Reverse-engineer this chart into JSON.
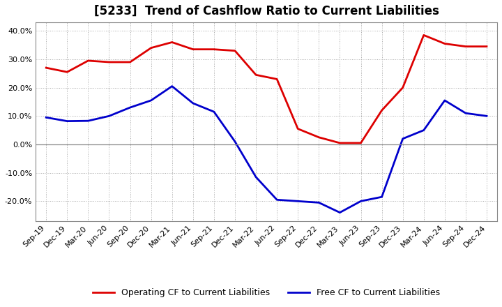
{
  "title": "[5233]  Trend of Cashflow Ratio to Current Liabilities",
  "x_labels": [
    "Sep-19",
    "Dec-19",
    "Mar-20",
    "Jun-20",
    "Sep-20",
    "Dec-20",
    "Mar-21",
    "Jun-21",
    "Sep-21",
    "Dec-21",
    "Mar-22",
    "Jun-22",
    "Sep-22",
    "Dec-22",
    "Mar-23",
    "Jun-23",
    "Sep-23",
    "Dec-23",
    "Mar-24",
    "Jun-24",
    "Sep-24",
    "Dec-24"
  ],
  "operating_cf": [
    0.27,
    0.255,
    0.295,
    0.29,
    0.29,
    0.34,
    0.36,
    0.335,
    0.335,
    0.33,
    0.245,
    0.23,
    0.055,
    0.025,
    0.005,
    0.005,
    0.12,
    0.2,
    0.385,
    0.355,
    0.345,
    0.345
  ],
  "free_cf": [
    0.095,
    0.082,
    0.083,
    0.1,
    0.13,
    0.155,
    0.205,
    0.145,
    0.115,
    0.01,
    -0.115,
    -0.195,
    -0.2,
    -0.205,
    -0.24,
    -0.2,
    -0.185,
    0.02,
    0.05,
    0.155,
    0.11,
    0.1
  ],
  "operating_color": "#DD0000",
  "free_color": "#0000CC",
  "bg_color": "#FFFFFF",
  "plot_bg_color": "#FFFFFF",
  "grid_color": "#AAAAAA",
  "ylim": [
    -0.27,
    0.43
  ],
  "yticks": [
    -0.2,
    -0.1,
    0.0,
    0.1,
    0.2,
    0.3,
    0.4
  ],
  "legend_op": "Operating CF to Current Liabilities",
  "legend_free": "Free CF to Current Liabilities",
  "title_fontsize": 12,
  "tick_fontsize": 8,
  "legend_fontsize": 9,
  "linewidth": 2.0
}
